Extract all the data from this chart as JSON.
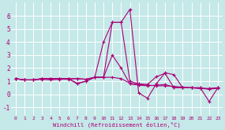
{
  "xlabel": "Windchill (Refroidissement éolien,°C)",
  "background_color": "#c5e8e8",
  "grid_color": "#ffffff",
  "line_color": "#aa0077",
  "xlim": [
    -0.5,
    23.5
  ],
  "ylim": [
    -1.6,
    7.0
  ],
  "yticks": [
    -1,
    0,
    1,
    2,
    3,
    4,
    5,
    6
  ],
  "xticks": [
    0,
    1,
    2,
    3,
    4,
    5,
    6,
    7,
    8,
    9,
    10,
    11,
    12,
    13,
    14,
    15,
    16,
    17,
    18,
    19,
    20,
    21,
    22,
    23
  ],
  "series": [
    [
      1.2,
      1.1,
      1.1,
      1.2,
      1.2,
      1.2,
      1.2,
      1.2,
      1.15,
      1.3,
      1.3,
      5.5,
      5.5,
      6.5,
      0.1,
      -0.3,
      0.8,
      1.65,
      1.5,
      0.5,
      0.5,
      0.5,
      0.4,
      0.5
    ],
    [
      1.2,
      1.1,
      1.1,
      1.2,
      1.2,
      1.2,
      1.2,
      0.85,
      1.0,
      1.3,
      4.0,
      5.5,
      5.5,
      1.0,
      0.8,
      0.75,
      1.35,
      1.6,
      0.5,
      0.5,
      0.5,
      0.5,
      -0.55,
      0.5
    ],
    [
      1.2,
      1.1,
      1.1,
      1.2,
      1.2,
      1.2,
      1.2,
      0.8,
      1.0,
      1.3,
      1.3,
      3.0,
      2.0,
      0.8,
      0.7,
      0.65,
      0.7,
      0.75,
      0.55,
      0.5,
      0.5,
      0.45,
      0.45,
      0.5
    ],
    [
      1.2,
      1.1,
      1.1,
      1.15,
      1.1,
      1.15,
      1.15,
      1.2,
      1.15,
      1.3,
      1.3,
      1.3,
      1.2,
      0.85,
      0.75,
      0.7,
      0.65,
      0.65,
      0.6,
      0.55,
      0.5,
      0.45,
      0.4,
      0.45
    ]
  ]
}
